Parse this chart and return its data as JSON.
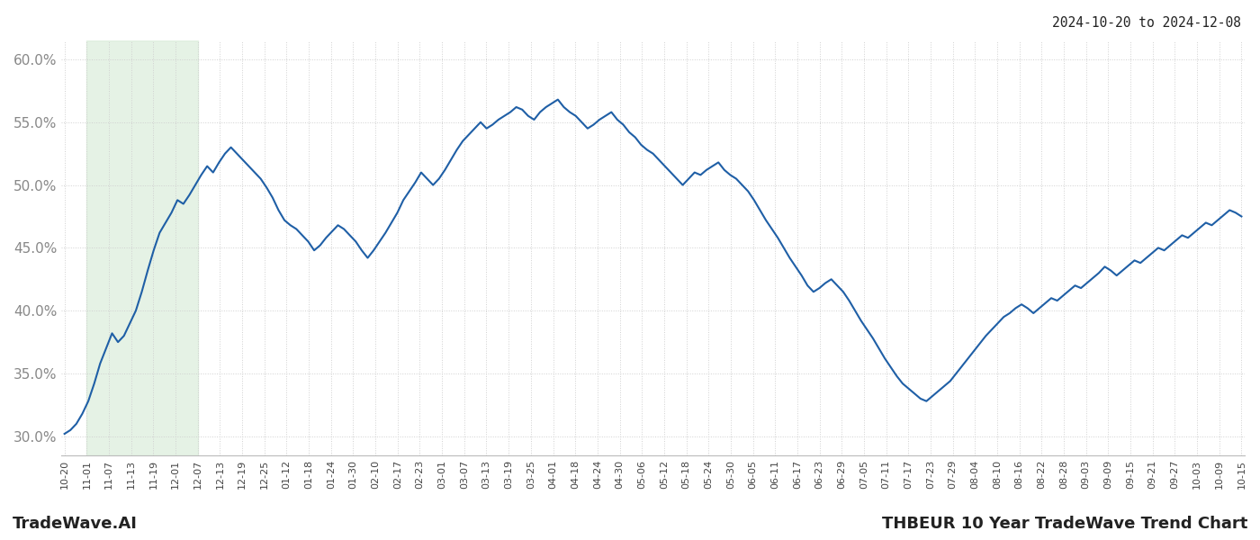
{
  "title_top_right": "2024-10-20 to 2024-12-08",
  "title_bottom_left": "TradeWave.AI",
  "title_bottom_right": "THBEUR 10 Year TradeWave Trend Chart",
  "background_color": "#ffffff",
  "line_color": "#1f5fa6",
  "line_width": 1.5,
  "grid_color": "#d0d0d0",
  "grid_style": "dotted",
  "shade_color": "#d4ead4",
  "shade_alpha": 0.6,
  "ylim": [
    0.285,
    0.615
  ],
  "yticks": [
    0.3,
    0.35,
    0.4,
    0.45,
    0.5,
    0.55,
    0.6
  ],
  "x_labels": [
    "10-20",
    "11-01",
    "11-07",
    "11-13",
    "11-19",
    "12-01",
    "12-07",
    "12-13",
    "12-19",
    "12-25",
    "01-12",
    "01-18",
    "01-24",
    "01-30",
    "02-10",
    "02-17",
    "02-23",
    "03-01",
    "03-07",
    "03-13",
    "03-19",
    "03-25",
    "04-01",
    "04-18",
    "04-24",
    "04-30",
    "05-06",
    "05-12",
    "05-18",
    "05-24",
    "05-30",
    "06-05",
    "06-11",
    "06-17",
    "06-23",
    "06-29",
    "07-05",
    "07-11",
    "07-17",
    "07-23",
    "07-29",
    "08-04",
    "08-10",
    "08-16",
    "08-22",
    "08-28",
    "09-03",
    "09-09",
    "09-15",
    "09-21",
    "09-27",
    "10-03",
    "10-09",
    "10-15"
  ],
  "shade_x_start_label": "11-01",
  "shade_x_end_label": "12-07",
  "values": [
    0.302,
    0.305,
    0.31,
    0.318,
    0.328,
    0.342,
    0.358,
    0.37,
    0.382,
    0.375,
    0.38,
    0.39,
    0.4,
    0.415,
    0.432,
    0.448,
    0.462,
    0.47,
    0.478,
    0.488,
    0.485,
    0.492,
    0.5,
    0.508,
    0.515,
    0.51,
    0.518,
    0.525,
    0.53,
    0.525,
    0.52,
    0.515,
    0.51,
    0.505,
    0.498,
    0.49,
    0.48,
    0.472,
    0.468,
    0.465,
    0.46,
    0.455,
    0.448,
    0.452,
    0.458,
    0.463,
    0.468,
    0.465,
    0.46,
    0.455,
    0.448,
    0.442,
    0.448,
    0.455,
    0.462,
    0.47,
    0.478,
    0.488,
    0.495,
    0.502,
    0.51,
    0.505,
    0.5,
    0.505,
    0.512,
    0.52,
    0.528,
    0.535,
    0.54,
    0.545,
    0.55,
    0.545,
    0.548,
    0.552,
    0.555,
    0.558,
    0.562,
    0.56,
    0.555,
    0.552,
    0.558,
    0.562,
    0.565,
    0.568,
    0.562,
    0.558,
    0.555,
    0.55,
    0.545,
    0.548,
    0.552,
    0.555,
    0.558,
    0.552,
    0.548,
    0.542,
    0.538,
    0.532,
    0.528,
    0.525,
    0.52,
    0.515,
    0.51,
    0.505,
    0.5,
    0.505,
    0.51,
    0.508,
    0.512,
    0.515,
    0.518,
    0.512,
    0.508,
    0.505,
    0.5,
    0.495,
    0.488,
    0.48,
    0.472,
    0.465,
    0.458,
    0.45,
    0.442,
    0.435,
    0.428,
    0.42,
    0.415,
    0.418,
    0.422,
    0.425,
    0.42,
    0.415,
    0.408,
    0.4,
    0.392,
    0.385,
    0.378,
    0.37,
    0.362,
    0.355,
    0.348,
    0.342,
    0.338,
    0.334,
    0.33,
    0.328,
    0.332,
    0.336,
    0.34,
    0.344,
    0.35,
    0.356,
    0.362,
    0.368,
    0.374,
    0.38,
    0.385,
    0.39,
    0.395,
    0.398,
    0.402,
    0.405,
    0.402,
    0.398,
    0.402,
    0.406,
    0.41,
    0.408,
    0.412,
    0.416,
    0.42,
    0.418,
    0.422,
    0.426,
    0.43,
    0.435,
    0.432,
    0.428,
    0.432,
    0.436,
    0.44,
    0.438,
    0.442,
    0.446,
    0.45,
    0.448,
    0.452,
    0.456,
    0.46,
    0.458,
    0.462,
    0.466,
    0.47,
    0.468,
    0.472,
    0.476,
    0.48,
    0.478,
    0.475
  ]
}
